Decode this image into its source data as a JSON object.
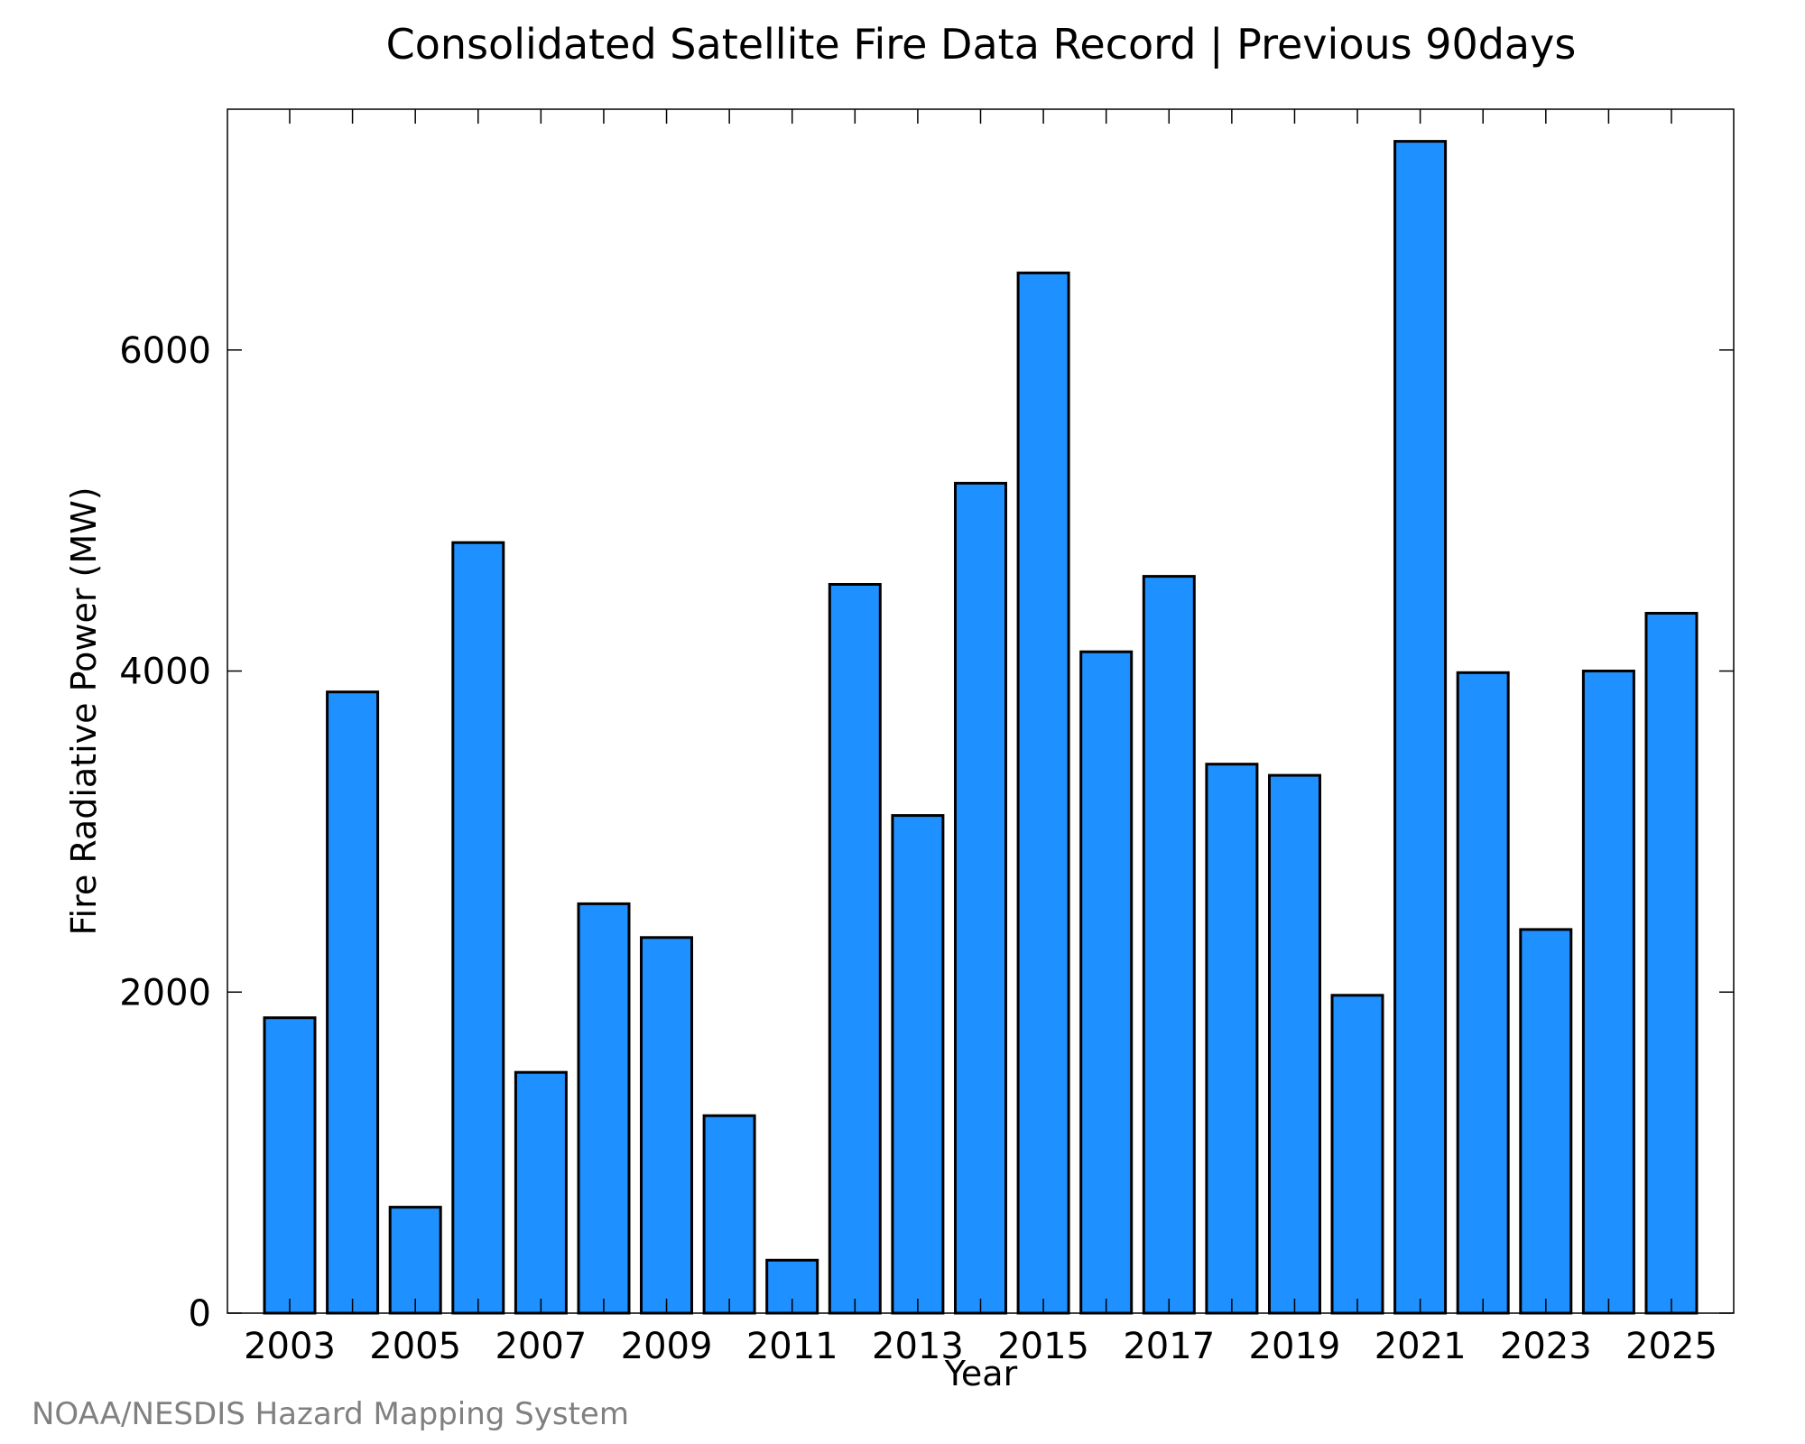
{
  "chart_data": {
    "type": "bar",
    "title": "Consolidated Satellite Fire Data Record | Previous 90days",
    "xlabel": "Year",
    "ylabel": "Fire Radiative Power (MW)",
    "categories": [
      "2003",
      "2004",
      "2005",
      "2006",
      "2007",
      "2008",
      "2009",
      "2010",
      "2011",
      "2012",
      "2013",
      "2014",
      "2015",
      "2016",
      "2017",
      "2018",
      "2019",
      "2020",
      "2021",
      "2022",
      "2023",
      "2024",
      "2025"
    ],
    "x_tick_labels": [
      "2003",
      "2005",
      "2007",
      "2009",
      "2011",
      "2013",
      "2015",
      "2017",
      "2019",
      "2021",
      "2023",
      "2025"
    ],
    "values": [
      1840,
      3870,
      660,
      4800,
      1500,
      2550,
      2340,
      1230,
      330,
      4540,
      3100,
      5170,
      6480,
      4120,
      4590,
      3420,
      3350,
      1980,
      7300,
      3990,
      2390,
      4000,
      4360
    ],
    "ylim": [
      0,
      7500
    ],
    "y_ticks": [
      0,
      2000,
      4000,
      6000
    ],
    "y_tick_labels": [
      "0",
      "2000",
      "4000",
      "6000"
    ],
    "grid": false,
    "bar_color": "#1e90ff",
    "bar_edge_color": "#000000"
  },
  "credit": "NOAA/NESDIS Hazard Mapping System"
}
